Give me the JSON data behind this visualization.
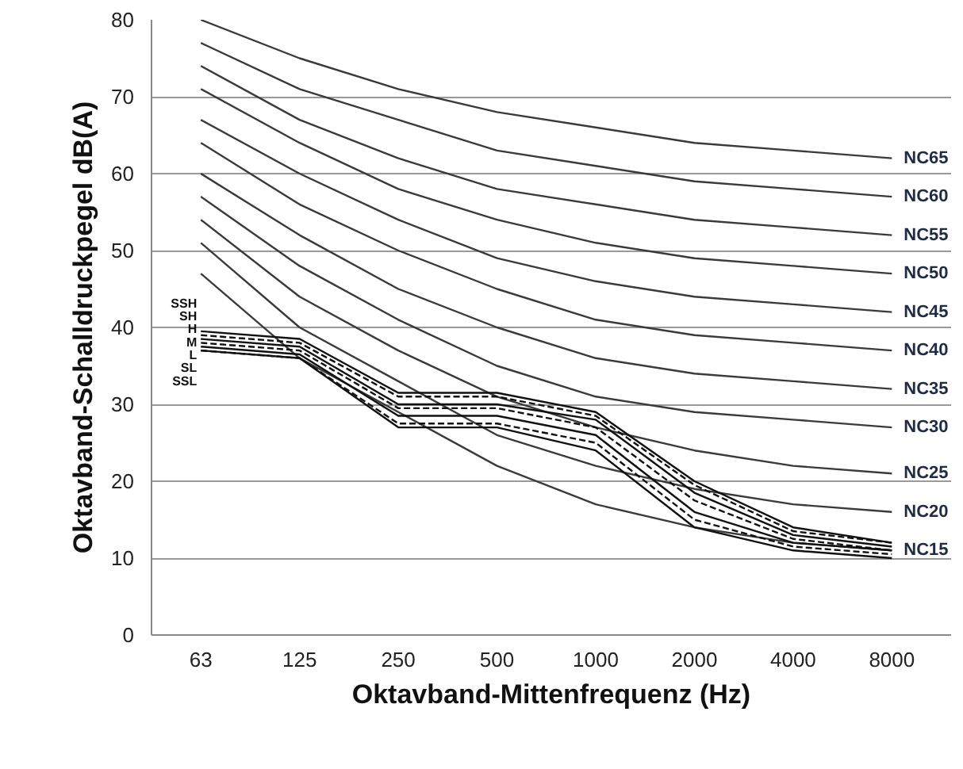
{
  "chart_data": {
    "type": "line",
    "xlabel": "Oktavband-Mittenfrequenz (Hz)",
    "ylabel": "Oktavband-Schalldruckpegel dB(A)",
    "categories": [
      "63",
      "125",
      "250",
      "500",
      "1000",
      "2000",
      "4000",
      "8000"
    ],
    "ylim": [
      0,
      80
    ],
    "yticks": [
      0,
      10,
      20,
      30,
      40,
      50,
      60,
      70,
      80
    ],
    "grid": "y",
    "series": [
      {
        "name": "NC65",
        "color": "#3a3a3a",
        "values": [
          80,
          75,
          71,
          68,
          66,
          64,
          63,
          62
        ]
      },
      {
        "name": "NC60",
        "color": "#3a3a3a",
        "values": [
          77,
          71,
          67,
          63,
          61,
          59,
          58,
          57
        ]
      },
      {
        "name": "NC55",
        "color": "#3a3a3a",
        "values": [
          74,
          67,
          62,
          58,
          56,
          54,
          53,
          52
        ]
      },
      {
        "name": "NC50",
        "color": "#3a3a3a",
        "values": [
          71,
          64,
          58,
          54,
          51,
          49,
          48,
          47
        ]
      },
      {
        "name": "NC45",
        "color": "#3a3a3a",
        "values": [
          67,
          60,
          54,
          49,
          46,
          44,
          43,
          42
        ]
      },
      {
        "name": "NC40",
        "color": "#3a3a3a",
        "values": [
          64,
          56,
          50,
          45,
          41,
          39,
          38,
          37
        ]
      },
      {
        "name": "NC35",
        "color": "#3a3a3a",
        "values": [
          60,
          52,
          45,
          40,
          36,
          34,
          33,
          32
        ]
      },
      {
        "name": "NC30",
        "color": "#3a3a3a",
        "values": [
          57,
          48,
          41,
          35,
          31,
          29,
          28,
          27
        ]
      },
      {
        "name": "NC25",
        "color": "#3a3a3a",
        "values": [
          54,
          44,
          37,
          31,
          27,
          24,
          22,
          21
        ]
      },
      {
        "name": "NC20",
        "color": "#3a3a3a",
        "values": [
          51,
          40,
          33,
          26,
          22,
          19,
          17,
          16
        ]
      },
      {
        "name": "NC15",
        "color": "#3a3a3a",
        "values": [
          47,
          36,
          29,
          22,
          17,
          14,
          12,
          11
        ]
      },
      {
        "name": "SSH",
        "color": "#111111",
        "line_style": "solid",
        "values": [
          39.5,
          38.5,
          31.5,
          31.5,
          29,
          20,
          14,
          12
        ]
      },
      {
        "name": "SH",
        "color": "#111111",
        "line_style": "dashed",
        "values": [
          39,
          38,
          31,
          31,
          28.5,
          19.5,
          13.5,
          12
        ]
      },
      {
        "name": "H",
        "color": "#111111",
        "line_style": "solid",
        "values": [
          38.5,
          37.5,
          30,
          30,
          28,
          18.5,
          13,
          11.5
        ]
      },
      {
        "name": "M",
        "color": "#111111",
        "line_style": "dashed",
        "values": [
          38,
          37,
          29.5,
          29.5,
          27,
          17.5,
          12.5,
          11
        ]
      },
      {
        "name": "L",
        "color": "#111111",
        "line_style": "solid",
        "values": [
          37.5,
          36.5,
          28.5,
          28.5,
          26,
          16,
          12,
          11
        ]
      },
      {
        "name": "SL",
        "color": "#111111",
        "line_style": "dashed",
        "values": [
          37,
          36,
          27.5,
          27.5,
          25,
          15,
          11.5,
          10.5
        ]
      },
      {
        "name": "SSL",
        "color": "#111111",
        "line_style": "solid",
        "values": [
          37,
          36,
          27,
          27,
          24,
          14,
          11,
          10
        ]
      }
    ]
  }
}
